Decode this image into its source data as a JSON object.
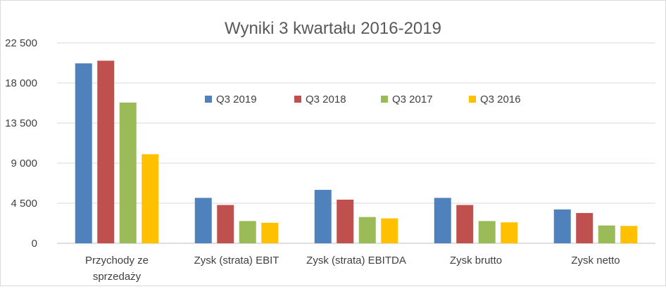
{
  "chart_data": {
    "type": "bar",
    "title": "Wyniki 3 kwartału 2016-2019",
    "xlabel": "",
    "ylabel": "",
    "ylim": [
      0,
      22500
    ],
    "yticks": [
      0,
      4500,
      9000,
      13500,
      18000,
      22500
    ],
    "ytick_labels": [
      "0",
      "4 500",
      "9 000",
      "13 500",
      "18 000",
      "22 500"
    ],
    "grid": true,
    "legend_position": "top-center",
    "categories": [
      [
        "Przychody ze",
        "sprzedaży"
      ],
      [
        "Zysk (strata) EBIT"
      ],
      [
        "Zysk (strata) EBITDA"
      ],
      [
        "Zysk brutto"
      ],
      [
        "Zysk netto"
      ]
    ],
    "series": [
      {
        "name": "Q3 2019",
        "color": "#4f81bd",
        "values": [
          20200,
          5100,
          6000,
          5100,
          3800
        ]
      },
      {
        "name": "Q3 2018",
        "color": "#c0504d",
        "values": [
          20500,
          4300,
          4900,
          4300,
          3400
        ]
      },
      {
        "name": "Q3 2017",
        "color": "#9bbb59",
        "values": [
          15800,
          2500,
          2950,
          2500,
          2000
        ]
      },
      {
        "name": "Q3 2016",
        "color": "#ffc000",
        "values": [
          10000,
          2300,
          2800,
          2350,
          1950
        ]
      }
    ]
  }
}
